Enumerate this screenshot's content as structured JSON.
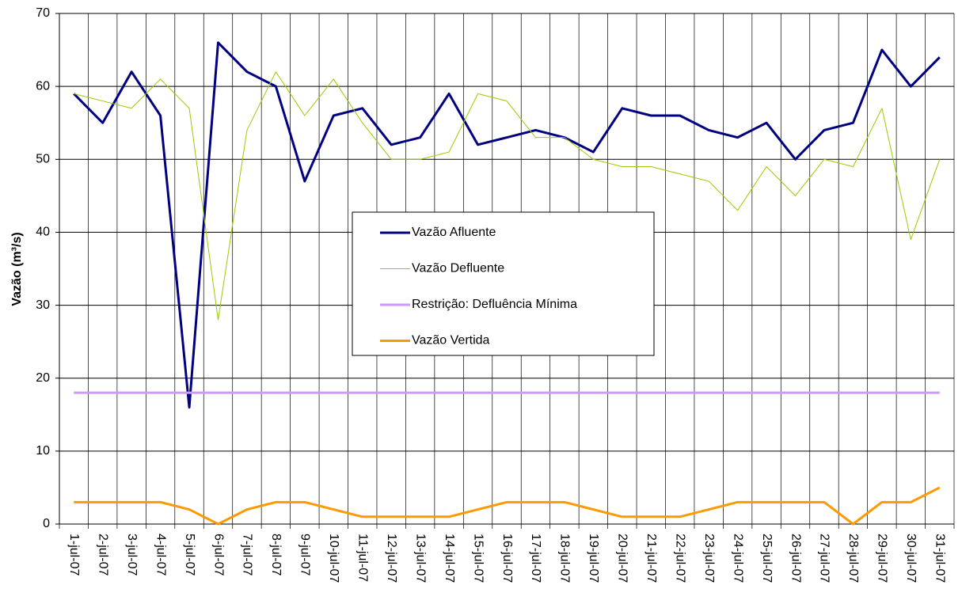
{
  "chart_data": {
    "type": "line",
    "y_label": "Vazão (m³/s)",
    "categories": [
      "1-jul-07",
      "2-jul-07",
      "3-jul-07",
      "4-jul-07",
      "5-jul-07",
      "6-jul-07",
      "7-jul-07",
      "8-jul-07",
      "9-jul-07",
      "10-jul-07",
      "11-jul-07",
      "12-jul-07",
      "13-jul-07",
      "14-jul-07",
      "15-jul-07",
      "16-jul-07",
      "17-jul-07",
      "18-jul-07",
      "19-jul-07",
      "20-jul-07",
      "21-jul-07",
      "22-jul-07",
      "23-jul-07",
      "24-jul-07",
      "25-jul-07",
      "26-jul-07",
      "27-jul-07",
      "28-jul-07",
      "29-jul-07",
      "30-jul-07",
      "31-jul-07"
    ],
    "series": [
      {
        "name": "Vazão Afluente",
        "color": "#000080",
        "width": 3,
        "values": [
          59,
          55,
          62,
          56,
          16,
          66,
          62,
          60,
          47,
          56,
          57,
          52,
          53,
          59,
          52,
          53,
          54,
          53,
          51,
          57,
          56,
          56,
          54,
          53,
          55,
          50,
          54,
          55,
          65,
          60,
          64
        ]
      },
      {
        "name": "Vazão Defluente",
        "color": "#99cc00",
        "width": 1,
        "values": [
          59,
          58,
          57,
          61,
          57,
          28,
          54,
          62,
          56,
          61,
          55,
          50,
          50,
          51,
          59,
          58,
          53,
          53,
          50,
          49,
          49,
          48,
          47,
          43,
          49,
          45,
          50,
          49,
          57,
          39,
          50
        ]
      },
      {
        "name": "Restrição: Defluência Mínima",
        "color": "#cc99ff",
        "width": 3,
        "values": [
          18,
          18,
          18,
          18,
          18,
          18,
          18,
          18,
          18,
          18,
          18,
          18,
          18,
          18,
          18,
          18,
          18,
          18,
          18,
          18,
          18,
          18,
          18,
          18,
          18,
          18,
          18,
          18,
          18,
          18,
          18
        ]
      },
      {
        "name": "Vazão Vertida",
        "color": "#ff9900",
        "width": 3,
        "values": [
          3,
          3,
          3,
          3,
          2,
          0,
          2,
          3,
          3,
          2,
          1,
          1,
          1,
          1,
          2,
          3,
          3,
          3,
          2,
          1,
          1,
          1,
          2,
          3,
          3,
          3,
          3,
          0,
          3,
          3,
          5
        ]
      }
    ],
    "ylim": [
      0,
      70
    ],
    "yticks": [
      0,
      10,
      20,
      30,
      40,
      50,
      60,
      70
    ],
    "grid": true
  }
}
